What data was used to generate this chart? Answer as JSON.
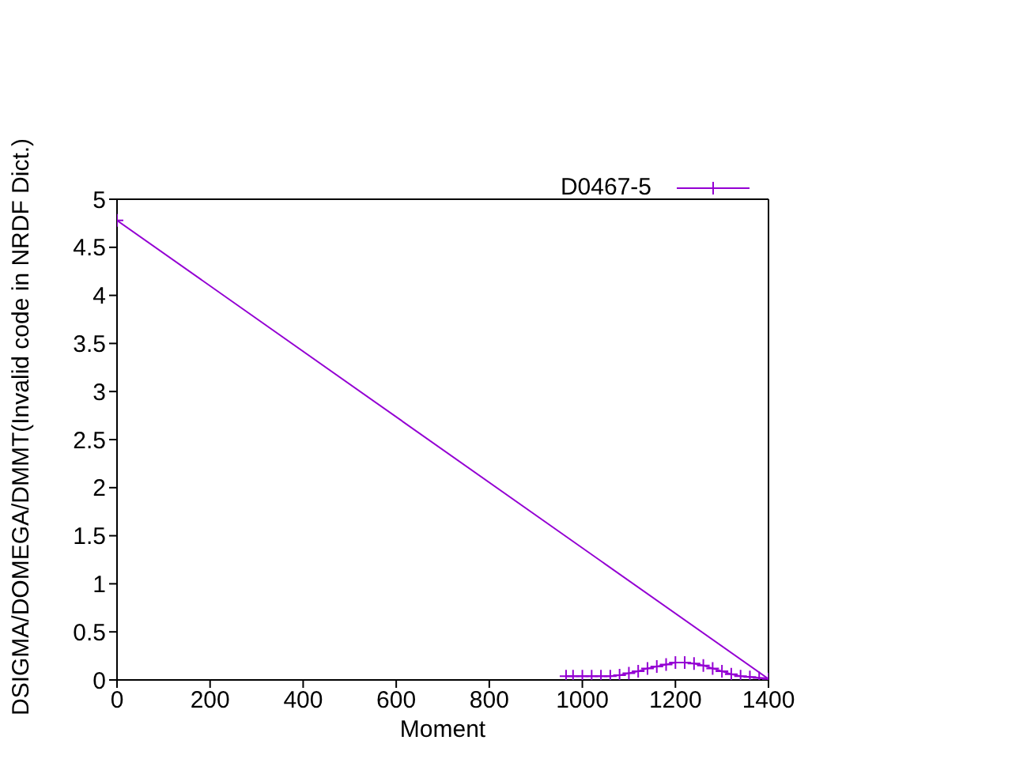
{
  "chart_data": {
    "type": "line",
    "xlabel": "Moment",
    "ylabel": "DSIGMA/DOMEGA/DMMT(Invalid code in NRDF Dict.)",
    "series": [
      {
        "name": "D0467-5",
        "color": "#9400d3",
        "x": [
          0,
          1400,
          1380,
          1360,
          1340,
          1320,
          1300,
          1280,
          1260,
          1240,
          1220,
          1200,
          1180,
          1160,
          1140,
          1120,
          1100,
          1080,
          1060,
          1040,
          1020,
          1000,
          980,
          965
        ],
        "values": [
          4.78,
          0.01,
          0.02,
          0.03,
          0.04,
          0.06,
          0.09,
          0.12,
          0.15,
          0.17,
          0.18,
          0.18,
          0.16,
          0.14,
          0.12,
          0.09,
          0.07,
          0.05,
          0.04,
          0.04,
          0.04,
          0.04,
          0.04,
          0.04
        ]
      }
    ],
    "xlim": [
      0,
      1400
    ],
    "xticks": [
      0,
      200,
      400,
      600,
      800,
      1000,
      1200,
      1400
    ],
    "ylim": [
      0,
      5
    ],
    "yticks": [
      0,
      0.5,
      1,
      1.5,
      2,
      2.5,
      3,
      3.5,
      4,
      4.5,
      5
    ],
    "legend": "top right",
    "marker": "cross",
    "line_style": "solid"
  }
}
